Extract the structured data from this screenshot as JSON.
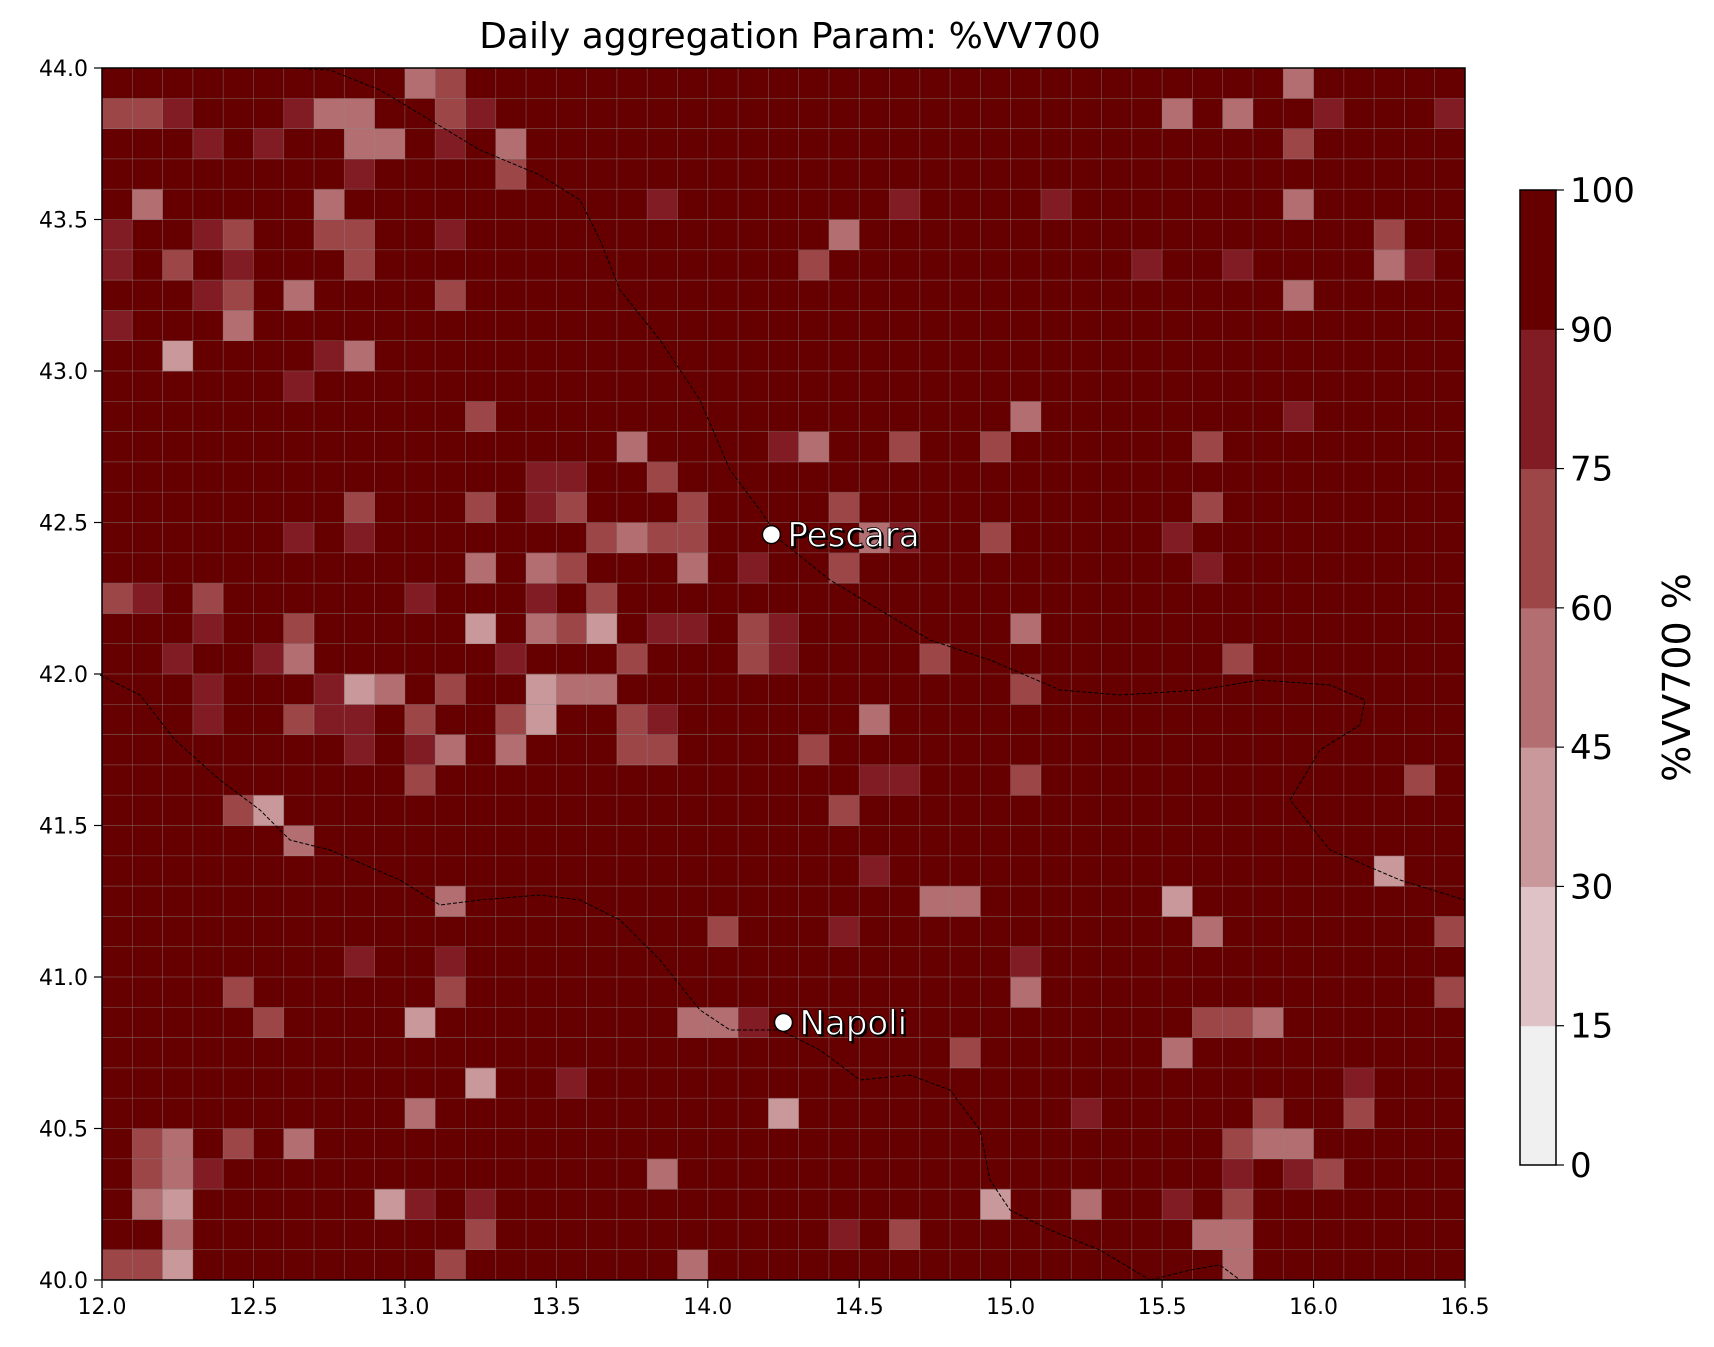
{
  "title": "Daily aggregation Param: %VV700",
  "chart_data": {
    "type": "heatmap",
    "title": "Daily aggregation Param: %VV700",
    "xlim": [
      12.0,
      16.5
    ],
    "ylim": [
      40.0,
      44.0
    ],
    "x_ticks": [
      "12.0",
      "12.5",
      "13.0",
      "13.5",
      "14.0",
      "14.5",
      "15.0",
      "15.5",
      "16.0",
      "16.5"
    ],
    "y_ticks": [
      "40.0",
      "40.5",
      "41.0",
      "41.5",
      "42.0",
      "42.5",
      "43.0",
      "43.5",
      "44.0"
    ],
    "grid_resolution_deg": 0.1,
    "grid": true,
    "colorbar": {
      "label": "%VV700  %",
      "levels": [
        0,
        15,
        30,
        45,
        60,
        75,
        90,
        100
      ],
      "tick_labels": [
        "0",
        "15",
        "30",
        "45",
        "60",
        "75",
        "90",
        "100"
      ],
      "colors": [
        "#f0f0f0",
        "#dec2c5",
        "#c8989a",
        "#b26e70",
        "#9c4648",
        "#821c24",
        "#660000"
      ]
    },
    "cities": [
      {
        "name": "Pescara",
        "lon": 14.21,
        "lat": 42.46
      },
      {
        "name": "Napoli",
        "lon": 14.25,
        "lat": 40.85
      }
    ],
    "field_description": "mostly 90-100 with patches 45-90 over central Apennines and south-east"
  }
}
